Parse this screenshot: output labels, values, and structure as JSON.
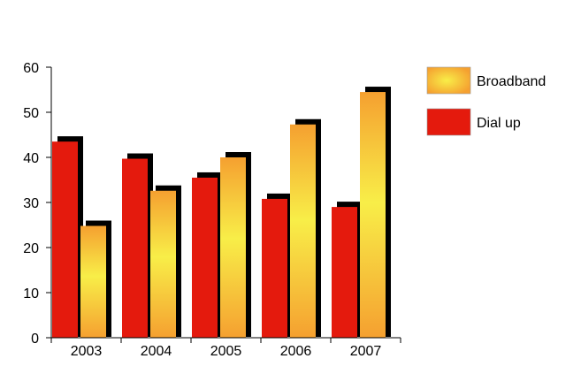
{
  "chart_data": {
    "type": "bar",
    "categories": [
      "2003",
      "2004",
      "2005",
      "2006",
      "2007"
    ],
    "series": [
      {
        "name": "Dial up",
        "values": [
          43.5,
          39.7,
          35.5,
          30.8,
          29.0
        ],
        "color": "#e41a0d"
      },
      {
        "name": "Broadband",
        "values": [
          24.8,
          32.6,
          40.0,
          47.3,
          54.5
        ],
        "color": "#f5a030",
        "gradient_center": "#f8ee48"
      }
    ],
    "ylim": [
      0,
      60
    ],
    "yticks": [
      0,
      10,
      20,
      30,
      40,
      50,
      60
    ],
    "legend": "top-right",
    "grid": false,
    "style": "3d-shadow"
  }
}
